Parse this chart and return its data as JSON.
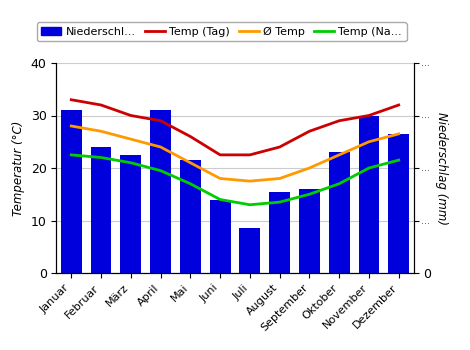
{
  "months": [
    "Januar",
    "Februar",
    "März",
    "April",
    "Mai",
    "Juni",
    "Juli",
    "August",
    "September",
    "Oktober",
    "November",
    "Dezember"
  ],
  "niederschlag": [
    31,
    24,
    22.5,
    31,
    21.5,
    14,
    8.5,
    15.5,
    16,
    23,
    30,
    26.5
  ],
  "temp_tag": [
    33,
    32,
    30,
    29,
    26,
    22.5,
    22.5,
    24,
    27,
    29,
    30,
    32
  ],
  "temp_avg": [
    28,
    27,
    25.5,
    24,
    21,
    18,
    17.5,
    18,
    20,
    22.5,
    25,
    26.5
  ],
  "temp_nacht": [
    22.5,
    22,
    21,
    19.5,
    17,
    14,
    13,
    13.5,
    15,
    17,
    20,
    21.5
  ],
  "bar_color": "#0000dd",
  "temp_tag_color": "#cc0000",
  "temp_avg_color": "#ff9900",
  "temp_nacht_color": "#00cc00",
  "ylabel_left": "Temperatur (°C)",
  "ylabel_right": "Niederschlag (mm)",
  "ylim_left": [
    0,
    40
  ],
  "ylim_right": [
    0,
    40
  ],
  "legend_labels": [
    "Niederschl...",
    "Temp (Tag)",
    "Ø Temp",
    "Temp (Na..."
  ],
  "grid_color": "#cccccc",
  "yticks": [
    0,
    10,
    20,
    30,
    40
  ],
  "background_color": "#ffffff",
  "dots_label": "..."
}
